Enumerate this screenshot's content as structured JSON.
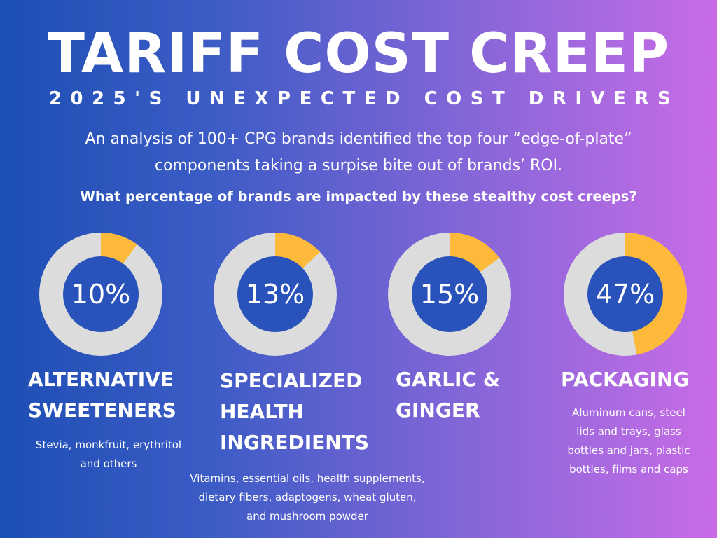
{
  "header": {
    "title": "TARIFF COST CREEP",
    "subtitle": "2025'S UNEXPECTED COST DRIVERS",
    "intro_line1": "An analysis of 100+ CPG brands identified the top four “edge-of-plate”",
    "intro_line2": "components taking a surpise bite out of brands’ ROI.",
    "question": "What percentage of brands are impacted by these stealthy cost creeps?"
  },
  "colors": {
    "accent": "#fcb93a",
    "track": "#dcdcdc",
    "inner": "#2a52bb"
  },
  "chart_data": {
    "type": "pie",
    "categories": [
      "ALTERNATIVE SWEETENERS",
      "SPECIALIZED HEALTH INGREDIENTS",
      "GARLIC & GINGER",
      "PACKAGING"
    ],
    "values": [
      10,
      13,
      15,
      47
    ],
    "unit": "%",
    "items": [
      {
        "value": 10,
        "label": "10%",
        "title_lines": [
          "ALTERNATIVE",
          "SWEETENERS"
        ],
        "desc_lines": [
          "Stevia, monkfruit, erythritol",
          "and others"
        ]
      },
      {
        "value": 13,
        "label": "13%",
        "title_lines": [
          "SPECIALIZED",
          "HEALTH",
          "INGREDIENTS"
        ],
        "desc_lines": [
          "Vitamins, essential oils, health supplements,",
          "dietary fibers, adaptogens, wheat gluten,",
          "and mushroom powder"
        ]
      },
      {
        "value": 15,
        "label": "15%",
        "title_lines": [
          "GARLIC &",
          "GINGER"
        ],
        "desc_lines": []
      },
      {
        "value": 47,
        "label": "47%",
        "title_lines": [
          "PACKAGING"
        ],
        "desc_lines": [
          "Aluminum cans, steel",
          "lids and trays, glass",
          "bottles and jars, plastic",
          "bottles, films and caps"
        ]
      }
    ]
  }
}
